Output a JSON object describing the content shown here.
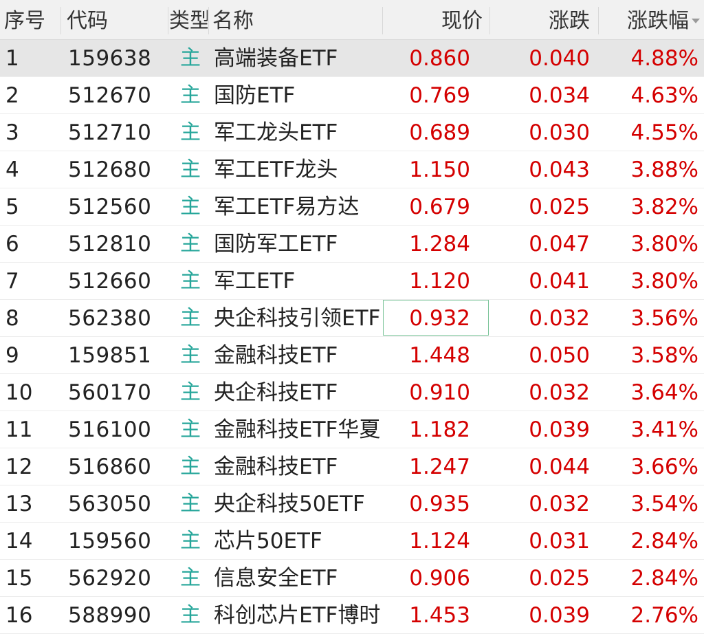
{
  "header": {
    "idx": "序号",
    "code": "代码",
    "type": "类型",
    "name": "名称",
    "price": "现价",
    "change": "涨跌",
    "change_pct": "涨跌幅"
  },
  "colors": {
    "up": "#d40000",
    "type_badge": "#26a69a",
    "selected_row": "#e6e6e6",
    "focus_border": "#7cc49a"
  },
  "rows": [
    {
      "idx": "1",
      "code": "159638",
      "type": "主",
      "name": "高端装备ETF",
      "price": "0.860",
      "change": "0.040",
      "change_pct": "4.88%"
    },
    {
      "idx": "2",
      "code": "512670",
      "type": "主",
      "name": "国防ETF",
      "price": "0.769",
      "change": "0.034",
      "change_pct": "4.63%"
    },
    {
      "idx": "3",
      "code": "512710",
      "type": "主",
      "name": "军工龙头ETF",
      "price": "0.689",
      "change": "0.030",
      "change_pct": "4.55%"
    },
    {
      "idx": "4",
      "code": "512680",
      "type": "主",
      "name": "军工ETF龙头",
      "price": "1.150",
      "change": "0.043",
      "change_pct": "3.88%"
    },
    {
      "idx": "5",
      "code": "512560",
      "type": "主",
      "name": "军工ETF易方达",
      "price": "0.679",
      "change": "0.025",
      "change_pct": "3.82%"
    },
    {
      "idx": "6",
      "code": "512810",
      "type": "主",
      "name": "国防军工ETF",
      "price": "1.284",
      "change": "0.047",
      "change_pct": "3.80%"
    },
    {
      "idx": "7",
      "code": "512660",
      "type": "主",
      "name": "军工ETF",
      "price": "1.120",
      "change": "0.041",
      "change_pct": "3.80%"
    },
    {
      "idx": "8",
      "code": "562380",
      "type": "主",
      "name": "央企科技引领ETF",
      "price": "0.932",
      "change": "0.032",
      "change_pct": "3.56%"
    },
    {
      "idx": "9",
      "code": "159851",
      "type": "主",
      "name": "金融科技ETF",
      "price": "1.448",
      "change": "0.050",
      "change_pct": "3.58%"
    },
    {
      "idx": "10",
      "code": "560170",
      "type": "主",
      "name": "央企科技ETF",
      "price": "0.910",
      "change": "0.032",
      "change_pct": "3.64%"
    },
    {
      "idx": "11",
      "code": "516100",
      "type": "主",
      "name": "金融科技ETF华夏",
      "price": "1.182",
      "change": "0.039",
      "change_pct": "3.41%"
    },
    {
      "idx": "12",
      "code": "516860",
      "type": "主",
      "name": "金融科技ETF",
      "price": "1.247",
      "change": "0.044",
      "change_pct": "3.66%"
    },
    {
      "idx": "13",
      "code": "563050",
      "type": "主",
      "name": "央企科技50ETF",
      "price": "0.935",
      "change": "0.032",
      "change_pct": "3.54%"
    },
    {
      "idx": "14",
      "code": "159560",
      "type": "主",
      "name": "芯片50ETF",
      "price": "1.124",
      "change": "0.031",
      "change_pct": "2.84%"
    },
    {
      "idx": "15",
      "code": "562920",
      "type": "主",
      "name": "信息安全ETF",
      "price": "0.906",
      "change": "0.025",
      "change_pct": "2.84%"
    },
    {
      "idx": "16",
      "code": "588990",
      "type": "主",
      "name": "科创芯片ETF博时",
      "price": "1.453",
      "change": "0.039",
      "change_pct": "2.76%"
    }
  ]
}
